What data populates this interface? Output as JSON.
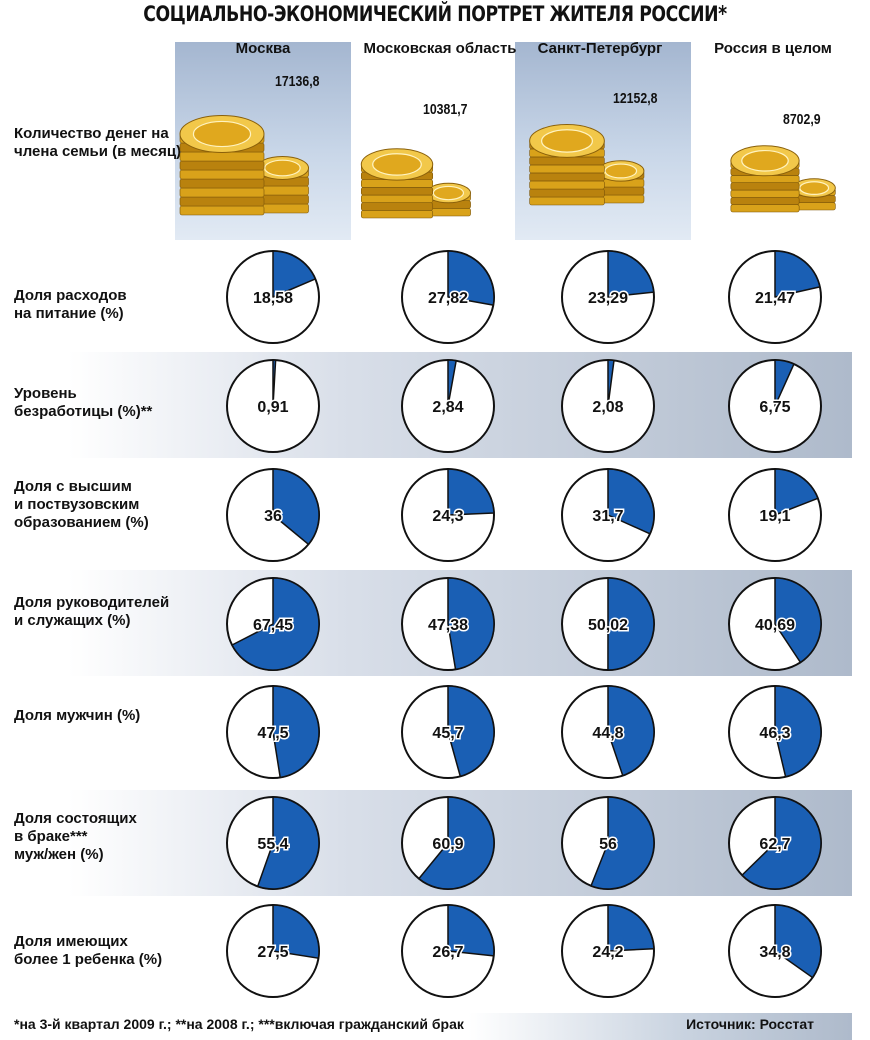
{
  "title": "СОЦИАЛЬНО-ЭКОНОМИЧЕСКИЙ ПОРТРЕТ ЖИТЕЛЯ РОССИИ*",
  "columns": [
    "Москва",
    "Московская область",
    "Санкт-Петербург",
    "Россия в целом"
  ],
  "money_label": "Количество денег на члена семьи (в месяц)",
  "money_values": [
    "17136,8",
    "10381,7",
    "12152,8",
    "8702,9"
  ],
  "footnote": "*на 3-й квартал 2009 г.; **на 2008 г.; ***включая гражданский брак",
  "source": "Источник: Росстат",
  "colors": {
    "pie_fill": "#1a5fb4",
    "pie_outline": "#111111",
    "coin_gold": "#d9a21a"
  },
  "chart_data": {
    "type": "pie",
    "title": "СОЦИАЛЬНО-ЭКОНОМИЧЕСКИЙ ПОРТРЕТ ЖИТЕЛЯ РОССИИ*",
    "categories": [
      "Москва",
      "Московская область",
      "Санкт-Петербург",
      "Россия в целом"
    ],
    "rows": [
      {
        "label": "Доля расходов на питание (%)",
        "values": [
          18.58,
          27.82,
          23.29,
          21.47
        ],
        "display": [
          "18,58",
          "27,82",
          "23,29",
          "21,47"
        ]
      },
      {
        "label": "Уровень безработицы (%)**",
        "values": [
          0.91,
          2.84,
          2.08,
          6.75
        ],
        "display": [
          "0,91",
          "2,84",
          "2,08",
          "6,75"
        ]
      },
      {
        "label": "Доля с высшим и поствузовским образованием (%)",
        "values": [
          36,
          24.3,
          31.7,
          19.1
        ],
        "display": [
          "36",
          "24,3",
          "31,7",
          "19,1"
        ]
      },
      {
        "label": "Доля руководителей и служащих (%)",
        "values": [
          67.45,
          47.38,
          50.02,
          40.69
        ],
        "display": [
          "67,45",
          "47,38",
          "50,02",
          "40,69"
        ]
      },
      {
        "label": "Доля мужчин (%)",
        "values": [
          47.5,
          45.7,
          44.8,
          46.3
        ],
        "display": [
          "47,5",
          "45,7",
          "44,8",
          "46,3"
        ]
      },
      {
        "label": "Доля состоящих в браке*** муж/жен (%)",
        "values": [
          55.4,
          60.9,
          56,
          62.7
        ],
        "display": [
          "55,4",
          "60,9",
          "56",
          "62,7"
        ]
      },
      {
        "label": "Доля имеющих более 1 ребенка (%)",
        "values": [
          27.5,
          26.7,
          24.2,
          34.8
        ],
        "display": [
          "27,5",
          "26,7",
          "24,2",
          "34,8"
        ]
      }
    ],
    "money": {
      "label": "Количество денег на члена семьи (в месяц)",
      "values": [
        17136.8,
        10381.7,
        12152.8,
        8702.9
      ]
    }
  }
}
